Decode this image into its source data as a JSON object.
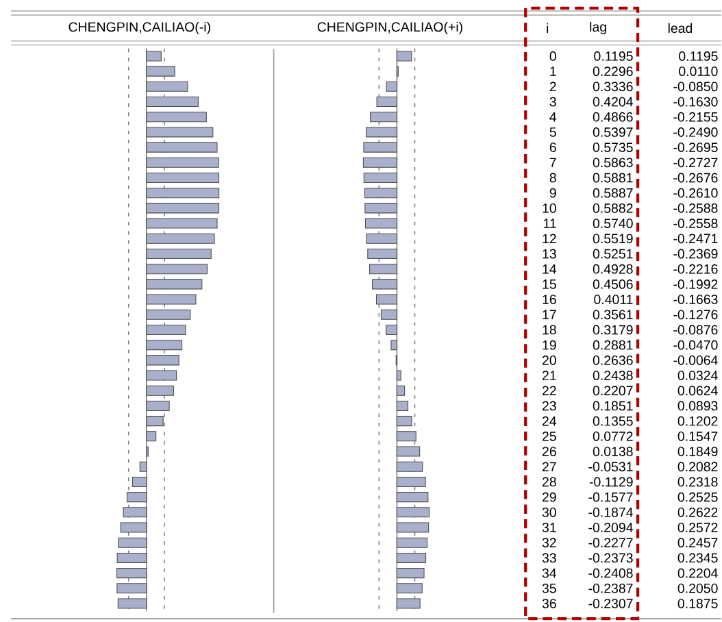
{
  "chart_data": [
    {
      "type": "bar",
      "orientation": "horizontal",
      "title": "CHENGPIN,CAILIAO(-i)",
      "annotations": [
        "i",
        "lag"
      ],
      "tick_labels": false,
      "color": "#a8b0cc",
      "categories": [
        "0",
        "1",
        "2",
        "3",
        "4",
        "5",
        "6",
        "7",
        "8",
        "9",
        "10",
        "11",
        "12",
        "13",
        "14",
        "15",
        "16",
        "17",
        "18",
        "19",
        "20",
        "21",
        "22",
        "23",
        "24",
        "25",
        "26",
        "27",
        "28",
        "29",
        "30",
        "31",
        "32",
        "33",
        "34",
        "35",
        "36"
      ],
      "values": [
        0.1195,
        0.2296,
        0.3336,
        0.4204,
        0.4866,
        0.5397,
        0.5735,
        0.5863,
        0.5881,
        0.5887,
        0.5882,
        0.574,
        0.5519,
        0.5251,
        0.4928,
        0.4506,
        0.4011,
        0.3561,
        0.3179,
        0.2881,
        0.2636,
        0.2438,
        0.2207,
        0.1851,
        0.1355,
        0.0772,
        0.0138,
        -0.0531,
        -0.1129,
        -0.1577,
        -0.1874,
        -0.2094,
        -0.2277,
        -0.2373,
        -0.2408,
        -0.2387,
        -0.2307
      ],
      "value_labels": [
        "0.1195",
        "0.2296",
        "0.3336",
        "0.4204",
        "0.4866",
        "0.5397",
        "0.5735",
        "0.5863",
        "0.5881",
        "0.5887",
        "0.5882",
        "0.5740",
        "0.5519",
        "0.5251",
        "0.4928",
        "0.4506",
        "0.4011",
        "0.3561",
        "0.3179",
        "0.2881",
        "0.2636",
        "0.2438",
        "0.2207",
        "0.1851",
        "0.1355",
        "0.0772",
        "0.0138",
        "-0.0531",
        "-0.1129",
        "-0.1577",
        "-0.1874",
        "-0.2094",
        "-0.2277",
        "-0.2373",
        "-0.2408",
        "-0.2387",
        "-0.2307"
      ],
      "ref_lines": [
        {
          "axis": "x",
          "value": 0,
          "color": "#808080",
          "line_style": "solid"
        },
        {
          "axis": "x",
          "value": -0.145,
          "color": "#808080",
          "line_style": "dashed"
        },
        {
          "axis": "x",
          "value": 0.145,
          "color": "#808080",
          "line_style": "dashed"
        }
      ]
    },
    {
      "type": "bar",
      "orientation": "horizontal",
      "title": "CHENGPIN,CAILIAO(+i)",
      "annotations": [
        "lead"
      ],
      "tick_labels": false,
      "color": "#a8b0cc",
      "categories": [
        "0",
        "1",
        "2",
        "3",
        "4",
        "5",
        "6",
        "7",
        "8",
        "9",
        "10",
        "11",
        "12",
        "13",
        "14",
        "15",
        "16",
        "17",
        "18",
        "19",
        "20",
        "21",
        "22",
        "23",
        "24",
        "25",
        "26",
        "27",
        "28",
        "29",
        "30",
        "31",
        "32",
        "33",
        "34",
        "35",
        "36"
      ],
      "values": [
        0.1195,
        0.011,
        -0.085,
        -0.163,
        -0.2155,
        -0.249,
        -0.2695,
        -0.2727,
        -0.2676,
        -0.261,
        -0.2588,
        -0.2558,
        -0.2471,
        -0.2369,
        -0.2216,
        -0.1992,
        -0.1663,
        -0.1276,
        -0.0876,
        -0.047,
        -0.0064,
        0.0324,
        0.0624,
        0.0893,
        0.1202,
        0.1547,
        0.1849,
        0.2082,
        0.2318,
        0.2525,
        0.2622,
        0.2572,
        0.2457,
        0.2345,
        0.2204,
        0.205,
        0.1875
      ],
      "value_labels": [
        "0.1195",
        "0.0110",
        "-0.0850",
        "-0.1630",
        "-0.2155",
        "-0.2490",
        "-0.2695",
        "-0.2727",
        "-0.2676",
        "-0.2610",
        "-0.2588",
        "-0.2558",
        "-0.2471",
        "-0.2369",
        "-0.2216",
        "-0.1992",
        "-0.1663",
        "-0.1276",
        "-0.0876",
        "-0.0470",
        "-0.0064",
        "0.0324",
        "0.0624",
        "0.0893",
        "0.1202",
        "0.1547",
        "0.1849",
        "0.2082",
        "0.2318",
        "0.2525",
        "0.2622",
        "0.2572",
        "0.2457",
        "0.2345",
        "0.2204",
        "0.2050",
        "0.1875"
      ],
      "ref_lines": [
        {
          "axis": "x",
          "value": 0,
          "color": "#808080",
          "line_style": "solid"
        },
        {
          "axis": "x",
          "value": -0.145,
          "color": "#808080",
          "line_style": "dashed"
        },
        {
          "axis": "x",
          "value": 0.145,
          "color": "#808080",
          "line_style": "dashed"
        }
      ]
    }
  ]
}
